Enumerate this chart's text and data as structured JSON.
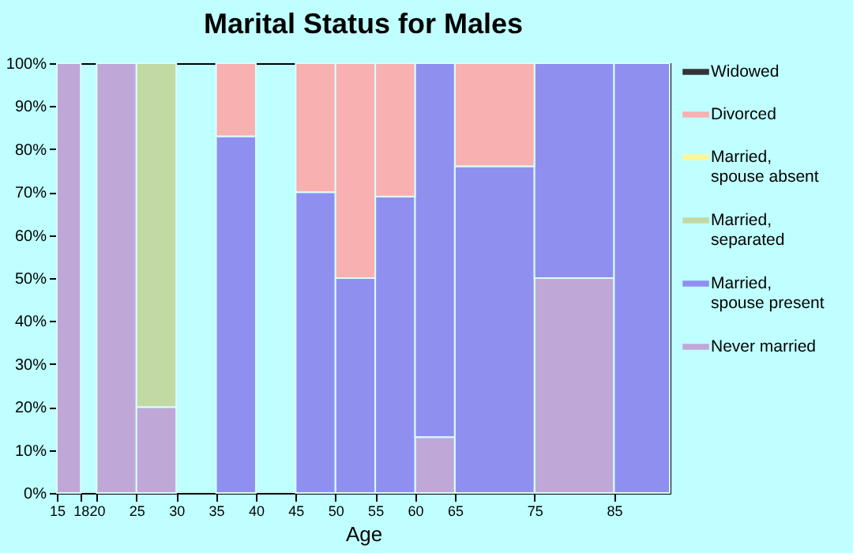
{
  "chart_data": {
    "type": "bar",
    "stacked": true,
    "title": "Marital Status for Males",
    "xlabel": "Age",
    "x": [
      16.5,
      19,
      22.5,
      27.5,
      32.5,
      37.5,
      42.5,
      47.5,
      52.5,
      57.5,
      62.5,
      70,
      80,
      88.5
    ],
    "xlim": [
      15,
      92
    ],
    "xticks": [
      15,
      18,
      20,
      25,
      30,
      35,
      40,
      45,
      50,
      55,
      60,
      65,
      75,
      85
    ],
    "ylim": [
      0,
      100
    ],
    "yticks": [
      {
        "value": 0,
        "label": "0%"
      },
      {
        "value": 10,
        "label": "10%"
      },
      {
        "value": 20,
        "label": "20%"
      },
      {
        "value": 30,
        "label": "30%"
      },
      {
        "value": 40,
        "label": "40%"
      },
      {
        "value": 50,
        "label": "50%"
      },
      {
        "value": 60,
        "label": "60%"
      },
      {
        "value": 70,
        "label": "70%"
      },
      {
        "value": 80,
        "label": "80%"
      },
      {
        "value": 90,
        "label": "90%"
      },
      {
        "value": 100,
        "label": "100%"
      }
    ],
    "legend": "right",
    "grid": false,
    "series": [
      {
        "name": "Never married",
        "color": "#bfa8d8",
        "values": [
          100,
          null,
          100,
          20,
          null,
          null,
          null,
          null,
          null,
          null,
          13,
          null,
          50,
          null
        ]
      },
      {
        "name": "Married, spouse present",
        "color": "#8f8ff0",
        "values": [
          null,
          null,
          null,
          null,
          null,
          83,
          null,
          70,
          50,
          69,
          87,
          76,
          50,
          100
        ]
      },
      {
        "name": "Married, separated",
        "color": "#c2d9a3",
        "values": [
          null,
          null,
          null,
          80,
          null,
          null,
          null,
          null,
          null,
          null,
          null,
          null,
          null,
          null
        ]
      },
      {
        "name": "Married, spouse absent",
        "color": "#fff59a",
        "values": [
          null,
          null,
          null,
          null,
          null,
          null,
          null,
          null,
          null,
          null,
          null,
          null,
          null,
          null
        ]
      },
      {
        "name": "Divorced",
        "color": "#f8b0b0",
        "values": [
          null,
          null,
          null,
          null,
          null,
          17,
          null,
          30,
          50,
          31,
          null,
          24,
          null,
          null
        ]
      },
      {
        "name": "Widowed",
        "color": "#333338",
        "values": [
          null,
          null,
          null,
          null,
          null,
          null,
          null,
          null,
          null,
          null,
          null,
          null,
          null,
          null
        ]
      }
    ]
  }
}
